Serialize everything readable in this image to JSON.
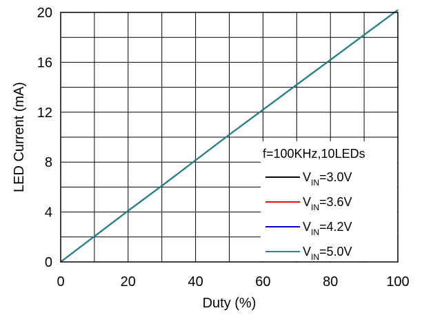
{
  "chart_data": {
    "type": "line",
    "xlabel": "Duty (%)",
    "ylabel": "LED Current (mA)",
    "xlim": [
      0,
      100
    ],
    "ylim": [
      0,
      20
    ],
    "xticks": [
      0,
      20,
      40,
      60,
      80,
      100
    ],
    "yticks": [
      0,
      4,
      8,
      12,
      16,
      20
    ],
    "grid": true,
    "legend_position": "bottom-right",
    "legend_title": "f=100KHz,10LEDs",
    "x": [
      0,
      10,
      20,
      30,
      40,
      50,
      60,
      70,
      80,
      90,
      100
    ],
    "series": [
      {
        "name_main": "V",
        "name_sub": "IN",
        "name_tail": "=3.0V",
        "color": "#000000",
        "values": [
          0,
          2.05,
          4.1,
          6.1,
          8.15,
          10.2,
          12.2,
          14.2,
          16.2,
          18.2,
          20.2
        ]
      },
      {
        "name_main": "V",
        "name_sub": "IN",
        "name_tail": "=3.6V",
        "color": "#ff0000",
        "values": [
          0,
          2.05,
          4.1,
          6.1,
          8.15,
          10.2,
          12.2,
          14.2,
          16.2,
          18.2,
          20.2
        ]
      },
      {
        "name_main": "V",
        "name_sub": "IN",
        "name_tail": "=4.2V",
        "color": "#0000cc",
        "values": [
          0,
          2.05,
          4.1,
          6.1,
          8.15,
          10.2,
          12.2,
          14.2,
          16.2,
          18.2,
          20.2
        ]
      },
      {
        "name_main": "V",
        "name_sub": "IN",
        "name_tail": "=5.0V",
        "color": "#1a8a8a",
        "values": [
          0,
          2.05,
          4.1,
          6.1,
          8.15,
          10.2,
          12.2,
          14.2,
          16.2,
          18.2,
          20.2
        ]
      }
    ]
  }
}
